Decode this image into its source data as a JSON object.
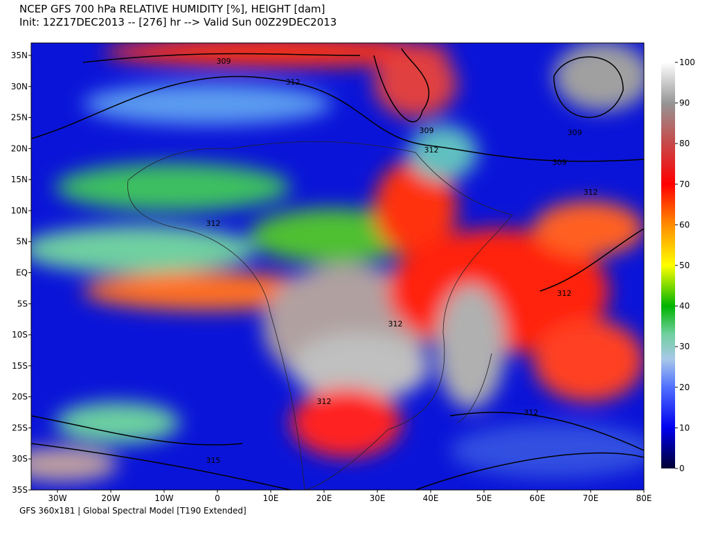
{
  "header": {
    "title": "NCEP GFS 700 hPa RELATIVE HUMIDITY [%], HEIGHT [dam]",
    "subtitle": "Init: 12Z17DEC2013 -- [276] hr --> Valid Sun 00Z29DEC2013"
  },
  "map": {
    "lat_labels": [
      "35N",
      "30N",
      "25N",
      "20N",
      "15N",
      "10N",
      "5N",
      "EQ",
      "5S",
      "10S",
      "15S",
      "20S",
      "25S",
      "30S",
      "35S"
    ],
    "lon_labels": [
      "30W",
      "20W",
      "10W",
      "0",
      "10E",
      "20E",
      "30E",
      "40E",
      "50E",
      "60E",
      "70E",
      "80E"
    ],
    "contour_labels": [
      "309",
      "312",
      "309",
      "312",
      "309",
      "309",
      "312",
      "312",
      "312",
      "312",
      "312",
      "312",
      "315"
    ]
  },
  "colorbar": {
    "lim": [
      0,
      100
    ],
    "ticks": [
      0,
      10,
      20,
      30,
      40,
      50,
      60,
      70,
      80,
      90,
      100
    ]
  },
  "footer": "GFS 360x181 | Global Spectral Model [T190 Extended]"
}
